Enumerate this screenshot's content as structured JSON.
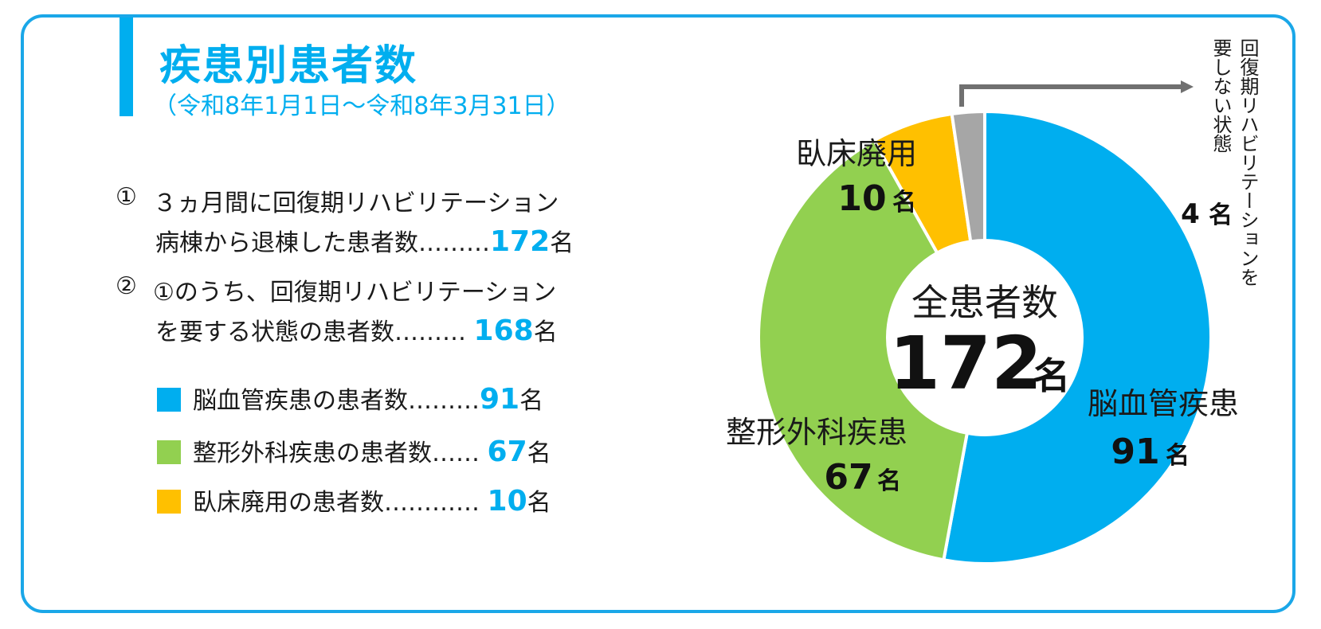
{
  "header": {
    "title": "疾患別患者数",
    "subtitle": "（令和8年1月1日～令和8年3月31日）"
  },
  "items": [
    {
      "marker": "①",
      "line1": "３ヵ月間に回復期リハビリテーション",
      "line2": "病棟から退棟した患者数………",
      "value": "172",
      "unit": "名"
    },
    {
      "marker": "②",
      "line1": "①のうち、回復期リハビリテーション",
      "line2": "を要する状態の患者数……… ",
      "value": "168",
      "unit": "名"
    }
  ],
  "legend": [
    {
      "label": "脳血管疾患の患者数………",
      "value": "91",
      "unit": "名",
      "color": "#00aeef"
    },
    {
      "label": "整形外科疾患の患者数…… ",
      "value": "67",
      "unit": "名",
      "color": "#92d050"
    },
    {
      "label": "臥床廃用の患者数………… ",
      "value": "10",
      "unit": "名",
      "color": "#ffc000"
    }
  ],
  "chart_data": {
    "type": "pie",
    "donut": true,
    "center_label": "全患者数",
    "center_value": "172",
    "center_unit": "名",
    "slices": [
      {
        "label": "脳血管疾患",
        "value": 91,
        "unit": "名",
        "color": "#00aeef"
      },
      {
        "label": "整形外科疾患",
        "value": 67,
        "unit": "名",
        "color": "#92d050"
      },
      {
        "label": "臥床廃用",
        "value": 10,
        "unit": "名",
        "color": "#ffc000"
      },
      {
        "label": "回復期リハビリテーションを要しない状態",
        "value": 4,
        "unit": "名",
        "color": "#a6a6a6"
      }
    ]
  },
  "annotation": {
    "line1": "回復期リハビリテーションを",
    "line2": "要しない状態"
  }
}
